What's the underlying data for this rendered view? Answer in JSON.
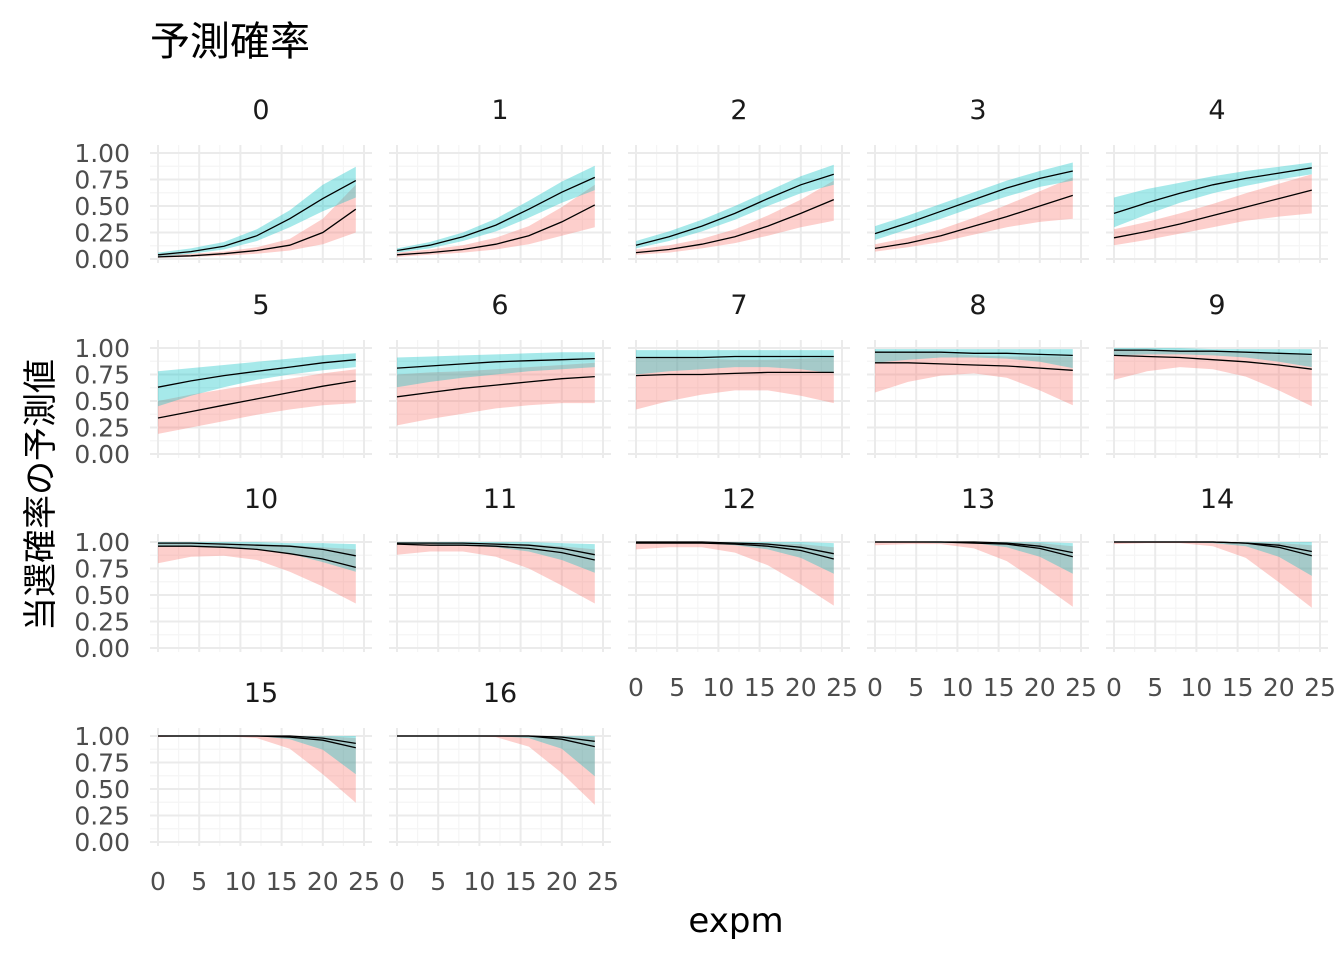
{
  "chart_data": {
    "type": "line",
    "title": "予測確率",
    "xlabel": "expm",
    "ylabel": "当選確率の予測値",
    "x_ticks": [
      "0",
      "5",
      "10",
      "15",
      "20",
      "25"
    ],
    "y_ticks": [
      "0.00",
      "0.25",
      "0.50",
      "0.75",
      "1.00"
    ],
    "xlim": [
      0,
      25
    ],
    "ylim": [
      0,
      1
    ],
    "grid": true,
    "legend": "none",
    "colors": {
      "series_a_band": "#f8766d",
      "series_b_band": "#00bfc4",
      "line": "#000000",
      "grid_major": "#ebebeb",
      "grid_minor": "#f5f5f5",
      "text": "#4d4d4d"
    },
    "x": [
      0,
      4,
      8,
      12,
      16,
      20,
      24
    ],
    "panels": [
      {
        "label": "0",
        "a": {
          "mean": [
            0.02,
            0.03,
            0.05,
            0.08,
            0.13,
            0.25,
            0.47
          ],
          "lower": [
            0.01,
            0.02,
            0.03,
            0.05,
            0.08,
            0.14,
            0.25
          ],
          "upper": [
            0.04,
            0.05,
            0.07,
            0.11,
            0.19,
            0.38,
            0.7
          ]
        },
        "b": {
          "mean": [
            0.04,
            0.07,
            0.12,
            0.22,
            0.38,
            0.57,
            0.74
          ],
          "lower": [
            0.02,
            0.05,
            0.09,
            0.17,
            0.3,
            0.45,
            0.58
          ],
          "upper": [
            0.06,
            0.1,
            0.16,
            0.28,
            0.46,
            0.7,
            0.87
          ]
        }
      },
      {
        "label": "1",
        "a": {
          "mean": [
            0.04,
            0.06,
            0.09,
            0.14,
            0.22,
            0.35,
            0.51
          ],
          "lower": [
            0.02,
            0.04,
            0.06,
            0.09,
            0.14,
            0.22,
            0.3
          ],
          "upper": [
            0.06,
            0.09,
            0.13,
            0.2,
            0.31,
            0.49,
            0.7
          ]
        },
        "b": {
          "mean": [
            0.08,
            0.13,
            0.21,
            0.32,
            0.47,
            0.63,
            0.77
          ],
          "lower": [
            0.06,
            0.1,
            0.17,
            0.26,
            0.39,
            0.53,
            0.65
          ],
          "upper": [
            0.1,
            0.16,
            0.25,
            0.38,
            0.55,
            0.73,
            0.88
          ]
        }
      },
      {
        "label": "2",
        "a": {
          "mean": [
            0.06,
            0.09,
            0.14,
            0.21,
            0.31,
            0.43,
            0.56
          ],
          "lower": [
            0.04,
            0.06,
            0.1,
            0.15,
            0.22,
            0.3,
            0.36
          ],
          "upper": [
            0.09,
            0.13,
            0.19,
            0.28,
            0.41,
            0.56,
            0.74
          ]
        },
        "b": {
          "mean": [
            0.13,
            0.21,
            0.31,
            0.43,
            0.57,
            0.7,
            0.8
          ],
          "lower": [
            0.1,
            0.17,
            0.26,
            0.37,
            0.5,
            0.62,
            0.7
          ],
          "upper": [
            0.17,
            0.26,
            0.37,
            0.5,
            0.64,
            0.78,
            0.89
          ]
        }
      },
      {
        "label": "3",
        "a": {
          "mean": [
            0.1,
            0.15,
            0.22,
            0.31,
            0.4,
            0.5,
            0.6
          ],
          "lower": [
            0.07,
            0.11,
            0.16,
            0.23,
            0.3,
            0.35,
            0.38
          ],
          "upper": [
            0.14,
            0.2,
            0.28,
            0.39,
            0.51,
            0.64,
            0.77
          ]
        },
        "b": {
          "mean": [
            0.24,
            0.34,
            0.45,
            0.56,
            0.67,
            0.76,
            0.83
          ],
          "lower": [
            0.18,
            0.28,
            0.38,
            0.49,
            0.59,
            0.68,
            0.74
          ],
          "upper": [
            0.31,
            0.41,
            0.52,
            0.63,
            0.74,
            0.83,
            0.91
          ]
        }
      },
      {
        "label": "4",
        "a": {
          "mean": [
            0.2,
            0.26,
            0.33,
            0.41,
            0.49,
            0.57,
            0.65
          ],
          "lower": [
            0.13,
            0.18,
            0.24,
            0.3,
            0.36,
            0.4,
            0.43
          ],
          "upper": [
            0.28,
            0.35,
            0.43,
            0.52,
            0.62,
            0.71,
            0.8
          ]
        },
        "b": {
          "mean": [
            0.43,
            0.53,
            0.62,
            0.7,
            0.76,
            0.81,
            0.86
          ],
          "lower": [
            0.3,
            0.42,
            0.53,
            0.62,
            0.69,
            0.75,
            0.8
          ],
          "upper": [
            0.58,
            0.66,
            0.72,
            0.78,
            0.83,
            0.87,
            0.91
          ]
        }
      },
      {
        "label": "5",
        "a": {
          "mean": [
            0.34,
            0.4,
            0.46,
            0.52,
            0.58,
            0.64,
            0.69
          ],
          "lower": [
            0.19,
            0.25,
            0.31,
            0.37,
            0.42,
            0.46,
            0.48
          ],
          "upper": [
            0.5,
            0.56,
            0.61,
            0.66,
            0.71,
            0.76,
            0.8
          ]
        },
        "b": {
          "mean": [
            0.63,
            0.69,
            0.74,
            0.78,
            0.82,
            0.86,
            0.89
          ],
          "lower": [
            0.45,
            0.55,
            0.63,
            0.7,
            0.75,
            0.79,
            0.82
          ],
          "upper": [
            0.78,
            0.81,
            0.84,
            0.87,
            0.9,
            0.93,
            0.95
          ]
        }
      },
      {
        "label": "6",
        "a": {
          "mean": [
            0.54,
            0.58,
            0.62,
            0.65,
            0.68,
            0.71,
            0.73
          ],
          "lower": [
            0.27,
            0.33,
            0.38,
            0.43,
            0.46,
            0.48,
            0.48
          ],
          "upper": [
            0.75,
            0.77,
            0.78,
            0.8,
            0.82,
            0.84,
            0.86
          ]
        },
        "b": {
          "mean": [
            0.81,
            0.83,
            0.85,
            0.87,
            0.88,
            0.89,
            0.9
          ],
          "lower": [
            0.63,
            0.68,
            0.72,
            0.75,
            0.78,
            0.8,
            0.82
          ],
          "upper": [
            0.91,
            0.92,
            0.93,
            0.94,
            0.95,
            0.96,
            0.96
          ]
        }
      },
      {
        "label": "7",
        "a": {
          "mean": [
            0.74,
            0.75,
            0.75,
            0.76,
            0.77,
            0.77,
            0.77
          ],
          "lower": [
            0.42,
            0.5,
            0.56,
            0.6,
            0.6,
            0.55,
            0.48
          ],
          "upper": [
            0.91,
            0.91,
            0.9,
            0.89,
            0.89,
            0.9,
            0.91
          ]
        },
        "b": {
          "mean": [
            0.91,
            0.91,
            0.91,
            0.92,
            0.92,
            0.92,
            0.92
          ],
          "lower": [
            0.75,
            0.78,
            0.8,
            0.82,
            0.82,
            0.8,
            0.76
          ],
          "upper": [
            0.98,
            0.98,
            0.98,
            0.98,
            0.98,
            0.98,
            0.98
          ]
        }
      },
      {
        "label": "8",
        "a": {
          "mean": [
            0.86,
            0.86,
            0.85,
            0.84,
            0.83,
            0.81,
            0.79
          ],
          "lower": [
            0.58,
            0.68,
            0.74,
            0.76,
            0.72,
            0.6,
            0.46
          ],
          "upper": [
            0.97,
            0.96,
            0.95,
            0.93,
            0.92,
            0.92,
            0.92
          ]
        },
        "b": {
          "mean": [
            0.96,
            0.96,
            0.96,
            0.95,
            0.95,
            0.94,
            0.93
          ],
          "lower": [
            0.86,
            0.89,
            0.91,
            0.91,
            0.9,
            0.87,
            0.81
          ],
          "upper": [
            0.99,
            0.99,
            0.99,
            0.99,
            0.99,
            0.99,
            0.99
          ]
        }
      },
      {
        "label": "9",
        "a": {
          "mean": [
            0.93,
            0.92,
            0.91,
            0.89,
            0.87,
            0.84,
            0.8
          ],
          "lower": [
            0.7,
            0.78,
            0.82,
            0.8,
            0.73,
            0.6,
            0.45
          ],
          "upper": [
            0.99,
            0.98,
            0.97,
            0.96,
            0.95,
            0.94,
            0.93
          ]
        },
        "b": {
          "mean": [
            0.98,
            0.98,
            0.97,
            0.97,
            0.96,
            0.95,
            0.94
          ],
          "lower": [
            0.93,
            0.94,
            0.94,
            0.93,
            0.91,
            0.87,
            0.82
          ],
          "upper": [
            1.0,
            1.0,
            1.0,
            0.99,
            0.99,
            0.99,
            0.99
          ]
        }
      },
      {
        "label": "10",
        "a": {
          "mean": [
            0.96,
            0.96,
            0.95,
            0.93,
            0.89,
            0.84,
            0.76
          ],
          "lower": [
            0.8,
            0.86,
            0.87,
            0.83,
            0.72,
            0.58,
            0.42
          ],
          "upper": [
            0.99,
            0.99,
            0.99,
            0.98,
            0.97,
            0.95,
            0.93
          ]
        },
        "b": {
          "mean": [
            0.99,
            0.99,
            0.98,
            0.97,
            0.96,
            0.93,
            0.87
          ],
          "lower": [
            0.96,
            0.96,
            0.95,
            0.93,
            0.89,
            0.81,
            0.72
          ],
          "upper": [
            1.0,
            1.0,
            1.0,
            1.0,
            0.99,
            0.99,
            0.98
          ]
        }
      },
      {
        "label": "11",
        "a": {
          "mean": [
            0.98,
            0.97,
            0.97,
            0.96,
            0.94,
            0.9,
            0.83
          ],
          "lower": [
            0.88,
            0.91,
            0.91,
            0.86,
            0.75,
            0.59,
            0.42
          ],
          "upper": [
            1.0,
            1.0,
            0.99,
            0.99,
            0.98,
            0.96,
            0.93
          ]
        },
        "b": {
          "mean": [
            0.99,
            0.99,
            0.99,
            0.98,
            0.97,
            0.94,
            0.88
          ],
          "lower": [
            0.98,
            0.98,
            0.97,
            0.95,
            0.91,
            0.83,
            0.71
          ],
          "upper": [
            1.0,
            1.0,
            1.0,
            1.0,
            1.0,
            0.99,
            0.98
          ]
        }
      },
      {
        "label": "12",
        "a": {
          "mean": [
            0.99,
            0.99,
            0.99,
            0.98,
            0.96,
            0.92,
            0.84
          ],
          "lower": [
            0.93,
            0.95,
            0.95,
            0.9,
            0.78,
            0.6,
            0.4
          ],
          "upper": [
            1.0,
            1.0,
            1.0,
            1.0,
            0.99,
            0.98,
            0.95
          ]
        },
        "b": {
          "mean": [
            1.0,
            1.0,
            1.0,
            0.99,
            0.98,
            0.95,
            0.89
          ],
          "lower": [
            0.99,
            0.99,
            0.99,
            0.97,
            0.93,
            0.85,
            0.7
          ],
          "upper": [
            1.0,
            1.0,
            1.0,
            1.0,
            1.0,
            1.0,
            0.99
          ]
        }
      },
      {
        "label": "13",
        "a": {
          "mean": [
            1.0,
            1.0,
            1.0,
            0.99,
            0.98,
            0.94,
            0.86
          ],
          "lower": [
            0.97,
            0.98,
            0.98,
            0.94,
            0.82,
            0.61,
            0.39
          ],
          "upper": [
            1.0,
            1.0,
            1.0,
            1.0,
            1.0,
            0.99,
            0.96
          ]
        },
        "b": {
          "mean": [
            1.0,
            1.0,
            1.0,
            1.0,
            0.99,
            0.96,
            0.9
          ],
          "lower": [
            1.0,
            1.0,
            0.99,
            0.99,
            0.95,
            0.86,
            0.7
          ],
          "upper": [
            1.0,
            1.0,
            1.0,
            1.0,
            1.0,
            1.0,
            0.99
          ]
        }
      },
      {
        "label": "14",
        "a": {
          "mean": [
            1.0,
            1.0,
            1.0,
            1.0,
            0.99,
            0.95,
            0.87
          ],
          "lower": [
            0.98,
            0.99,
            0.99,
            0.96,
            0.85,
            0.62,
            0.38
          ],
          "upper": [
            1.0,
            1.0,
            1.0,
            1.0,
            1.0,
            0.99,
            0.97
          ]
        },
        "b": {
          "mean": [
            1.0,
            1.0,
            1.0,
            1.0,
            0.99,
            0.97,
            0.91
          ],
          "lower": [
            1.0,
            1.0,
            1.0,
            0.99,
            0.96,
            0.86,
            0.68
          ],
          "upper": [
            1.0,
            1.0,
            1.0,
            1.0,
            1.0,
            1.0,
            1.0
          ]
        }
      },
      {
        "label": "15",
        "a": {
          "mean": [
            1.0,
            1.0,
            1.0,
            1.0,
            0.99,
            0.96,
            0.89
          ],
          "lower": [
            0.99,
            1.0,
            1.0,
            0.98,
            0.88,
            0.64,
            0.37
          ],
          "upper": [
            1.0,
            1.0,
            1.0,
            1.0,
            1.0,
            1.0,
            0.98
          ]
        },
        "b": {
          "mean": [
            1.0,
            1.0,
            1.0,
            1.0,
            1.0,
            0.98,
            0.93
          ],
          "lower": [
            1.0,
            1.0,
            1.0,
            1.0,
            0.97,
            0.87,
            0.64
          ],
          "upper": [
            1.0,
            1.0,
            1.0,
            1.0,
            1.0,
            1.0,
            1.0
          ]
        }
      },
      {
        "label": "16",
        "a": {
          "mean": [
            1.0,
            1.0,
            1.0,
            1.0,
            1.0,
            0.97,
            0.9
          ],
          "lower": [
            1.0,
            1.0,
            1.0,
            0.99,
            0.9,
            0.65,
            0.35
          ],
          "upper": [
            1.0,
            1.0,
            1.0,
            1.0,
            1.0,
            1.0,
            0.99
          ]
        },
        "b": {
          "mean": [
            1.0,
            1.0,
            1.0,
            1.0,
            1.0,
            0.99,
            0.95
          ],
          "lower": [
            1.0,
            1.0,
            1.0,
            1.0,
            0.98,
            0.88,
            0.62
          ],
          "upper": [
            1.0,
            1.0,
            1.0,
            1.0,
            1.0,
            1.0,
            1.0
          ]
        }
      }
    ]
  }
}
